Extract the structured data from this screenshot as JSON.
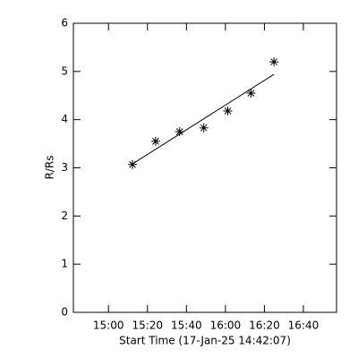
{
  "chart_data": {
    "type": "scatter",
    "xlabel": "Start Time (17-Jan-25 14:42:07)",
    "ylabel": "R/Rs",
    "series": [
      {
        "x": [
          912.3,
          924.2,
          936.5,
          948.9,
          961.2,
          973.1,
          984.9
        ],
        "values": [
          3.07,
          3.55,
          3.75,
          3.83,
          4.18,
          4.55,
          5.2
        ],
        "color": "#000000",
        "marker": "asterisk"
      },
      {
        "x": [
          912.3,
          984.9
        ],
        "values": [
          3.08,
          4.94
        ],
        "color": "#000000",
        "line": true
      }
    ],
    "xlim": [
      882,
      1017
    ],
    "xticks": [
      {
        "value": 900,
        "label": "15:00"
      },
      {
        "value": 920,
        "label": "15:20"
      },
      {
        "value": 940,
        "label": "15:40"
      },
      {
        "value": 960,
        "label": "16:00"
      },
      {
        "value": 980,
        "label": "16:20"
      },
      {
        "value": 1000,
        "label": "16:40"
      }
    ],
    "ylim": [
      0,
      6
    ],
    "yticks": [
      0,
      1,
      2,
      3,
      4,
      5,
      6
    ],
    "grid": false
  }
}
